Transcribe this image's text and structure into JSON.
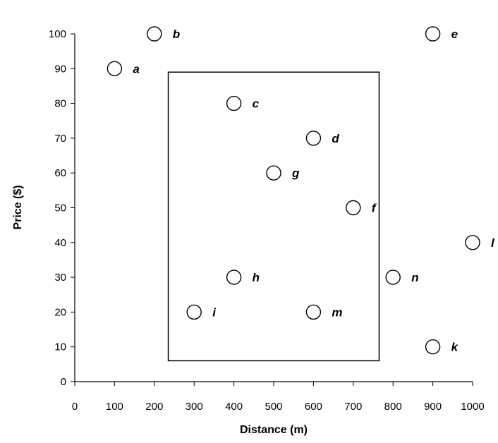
{
  "chart_data": {
    "type": "scatter",
    "title": "",
    "xlabel": "Distance (m)",
    "ylabel": "Price ($)",
    "xlim": [
      0,
      1000
    ],
    "ylim": [
      0,
      100
    ],
    "x_ticks": [
      0,
      100,
      200,
      300,
      400,
      500,
      600,
      700,
      800,
      900,
      1000
    ],
    "y_ticks": [
      0,
      10,
      20,
      30,
      40,
      50,
      60,
      70,
      80,
      90,
      100
    ],
    "grid": false,
    "legend": "none",
    "marker": "open-circle",
    "points": [
      {
        "label": "a",
        "x": 100,
        "y": 90
      },
      {
        "label": "b",
        "x": 200,
        "y": 100
      },
      {
        "label": "c",
        "x": 400,
        "y": 80
      },
      {
        "label": "d",
        "x": 600,
        "y": 70
      },
      {
        "label": "e",
        "x": 900,
        "y": 100
      },
      {
        "label": "f",
        "x": 700,
        "y": 50
      },
      {
        "label": "g",
        "x": 500,
        "y": 60
      },
      {
        "label": "h",
        "x": 400,
        "y": 30
      },
      {
        "label": "i",
        "x": 300,
        "y": 20
      },
      {
        "label": "k",
        "x": 900,
        "y": 10
      },
      {
        "label": "l",
        "x": 1000,
        "y": 40
      },
      {
        "label": "m",
        "x": 600,
        "y": 20
      },
      {
        "label": "n",
        "x": 800,
        "y": 30
      }
    ],
    "annotations": [
      {
        "type": "rectangle",
        "x_range": [
          235,
          765
        ],
        "y_range": [
          6,
          89
        ]
      }
    ]
  }
}
